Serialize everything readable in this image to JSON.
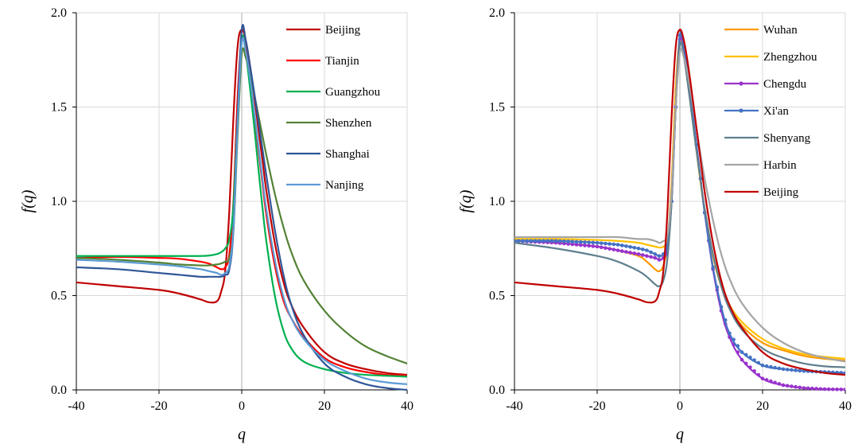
{
  "chart_data": [
    {
      "type": "line",
      "title": "",
      "xlabel": "q",
      "ylabel": "f(q)",
      "xlim": [
        -40,
        40
      ],
      "ylim": [
        0,
        2.0
      ],
      "xticks": [
        "-40",
        "-20",
        "0",
        "20",
        "40"
      ],
      "yticks": [
        "0.0",
        "0.5",
        "1.0",
        "1.5",
        "2.0"
      ],
      "grid": true,
      "legend_position": "top-right",
      "series": [
        {
          "name": "Beijing",
          "color": "#c00000",
          "markers": false,
          "x": [
            -40,
            -30,
            -20,
            -15,
            -10,
            -8,
            -6,
            -5,
            -4,
            -3,
            -2,
            -1,
            0,
            1,
            2,
            3,
            4,
            5,
            6,
            8,
            10,
            12,
            15,
            20,
            25,
            30,
            35,
            40
          ],
          "y": [
            0.57,
            0.55,
            0.53,
            0.51,
            0.48,
            0.465,
            0.47,
            0.52,
            0.63,
            0.95,
            1.45,
            1.82,
            1.91,
            1.85,
            1.72,
            1.56,
            1.39,
            1.22,
            1.05,
            0.78,
            0.58,
            0.45,
            0.33,
            0.2,
            0.14,
            0.11,
            0.09,
            0.08
          ]
        },
        {
          "name": "Tianjin",
          "color": "#ff0000",
          "markers": false,
          "x": [
            -40,
            -30,
            -20,
            -15,
            -10,
            -8,
            -6,
            -5,
            -4,
            -3,
            -2,
            -1,
            0,
            1,
            2,
            3,
            4,
            5,
            6,
            8,
            10,
            12,
            15,
            20,
            25,
            30,
            35,
            40
          ],
          "y": [
            0.7,
            0.705,
            0.7,
            0.695,
            0.68,
            0.67,
            0.65,
            0.64,
            0.65,
            0.72,
            1.0,
            1.55,
            1.86,
            1.8,
            1.65,
            1.47,
            1.28,
            1.1,
            0.92,
            0.66,
            0.48,
            0.38,
            0.28,
            0.17,
            0.12,
            0.095,
            0.08,
            0.075
          ]
        },
        {
          "name": "Guangzhou",
          "color": "#00b050",
          "markers": false,
          "x": [
            -40,
            -30,
            -20,
            -15,
            -10,
            -8,
            -6,
            -5,
            -4,
            -3,
            -2,
            -1,
            0,
            1,
            2,
            3,
            4,
            5,
            6,
            8,
            10,
            12,
            15,
            20,
            25,
            30,
            35,
            40
          ],
          "y": [
            0.71,
            0.71,
            0.71,
            0.71,
            0.71,
            0.712,
            0.72,
            0.73,
            0.75,
            0.8,
            0.98,
            1.45,
            1.86,
            1.78,
            1.6,
            1.4,
            1.18,
            0.97,
            0.78,
            0.5,
            0.32,
            0.22,
            0.15,
            0.11,
            0.09,
            0.08,
            0.075,
            0.07
          ]
        },
        {
          "name": "Shenzhen",
          "color": "#548235",
          "markers": false,
          "x": [
            -40,
            -30,
            -20,
            -15,
            -10,
            -8,
            -6,
            -5,
            -4,
            -3,
            -2,
            -1,
            0,
            1,
            2,
            3,
            4,
            5,
            6,
            8,
            10,
            12,
            15,
            20,
            25,
            30,
            35,
            40
          ],
          "y": [
            0.7,
            0.69,
            0.675,
            0.665,
            0.66,
            0.66,
            0.665,
            0.67,
            0.68,
            0.7,
            0.85,
            1.35,
            1.78,
            1.76,
            1.67,
            1.57,
            1.46,
            1.35,
            1.24,
            1.04,
            0.87,
            0.73,
            0.58,
            0.42,
            0.31,
            0.23,
            0.18,
            0.14
          ]
        },
        {
          "name": "Shanghai",
          "color": "#2f5597",
          "markers": false,
          "x": [
            -40,
            -30,
            -20,
            -15,
            -10,
            -8,
            -6,
            -5,
            -4,
            -3,
            -2,
            -1,
            0,
            1,
            2,
            3,
            4,
            5,
            6,
            8,
            10,
            12,
            15,
            20,
            25,
            30,
            35,
            40
          ],
          "y": [
            0.65,
            0.64,
            0.62,
            0.61,
            0.6,
            0.6,
            0.6,
            0.6,
            0.61,
            0.64,
            0.85,
            1.45,
            1.91,
            1.85,
            1.72,
            1.58,
            1.43,
            1.28,
            1.13,
            0.85,
            0.62,
            0.45,
            0.29,
            0.14,
            0.07,
            0.03,
            0.01,
            0.0
          ]
        },
        {
          "name": "Nanjing",
          "color": "#5b9bd5",
          "markers": false,
          "x": [
            -40,
            -30,
            -20,
            -15,
            -10,
            -8,
            -6,
            -5,
            -4,
            -3,
            -2,
            -1,
            0,
            1,
            2,
            3,
            4,
            5,
            6,
            8,
            10,
            12,
            15,
            20,
            25,
            30,
            35,
            40
          ],
          "y": [
            0.69,
            0.68,
            0.665,
            0.655,
            0.64,
            0.63,
            0.62,
            0.61,
            0.62,
            0.66,
            0.86,
            1.4,
            1.84,
            1.79,
            1.65,
            1.48,
            1.3,
            1.12,
            0.95,
            0.69,
            0.5,
            0.38,
            0.27,
            0.16,
            0.1,
            0.06,
            0.04,
            0.03
          ]
        }
      ]
    },
    {
      "type": "line",
      "title": "",
      "xlabel": "q",
      "ylabel": "f(q)",
      "xlim": [
        -40,
        40
      ],
      "ylim": [
        0,
        2.0
      ],
      "xticks": [
        "-40",
        "-20",
        "0",
        "20",
        "40"
      ],
      "yticks": [
        "0.0",
        "0.5",
        "1.0",
        "1.5",
        "2.0"
      ],
      "grid": true,
      "legend_position": "top-right",
      "series": [
        {
          "name": "Wuhan",
          "color": "#ff9900",
          "markers": false,
          "x": [
            -40,
            -30,
            -20,
            -15,
            -10,
            -8,
            -6,
            -5,
            -4,
            -3,
            -2,
            -1,
            0,
            1,
            2,
            3,
            4,
            5,
            6,
            8,
            10,
            12,
            15,
            20,
            25,
            30,
            35,
            40
          ],
          "y": [
            0.79,
            0.78,
            0.76,
            0.74,
            0.71,
            0.68,
            0.64,
            0.63,
            0.66,
            0.78,
            1.1,
            1.6,
            1.87,
            1.8,
            1.64,
            1.46,
            1.28,
            1.11,
            0.95,
            0.71,
            0.55,
            0.44,
            0.34,
            0.25,
            0.21,
            0.18,
            0.165,
            0.155
          ]
        },
        {
          "name": "Zhengzhou",
          "color": "#ffc000",
          "markers": false,
          "x": [
            -40,
            -30,
            -20,
            -15,
            -10,
            -8,
            -6,
            -5,
            -4,
            -3,
            -2,
            -1,
            0,
            1,
            2,
            3,
            4,
            5,
            6,
            8,
            10,
            12,
            15,
            20,
            25,
            30,
            35,
            40
          ],
          "y": [
            0.8,
            0.8,
            0.795,
            0.79,
            0.78,
            0.77,
            0.76,
            0.755,
            0.76,
            0.8,
            1.05,
            1.55,
            1.85,
            1.78,
            1.62,
            1.45,
            1.27,
            1.1,
            0.95,
            0.71,
            0.55,
            0.45,
            0.36,
            0.27,
            0.22,
            0.19,
            0.175,
            0.165
          ]
        },
        {
          "name": "Chengdu",
          "color": "#9933cc",
          "markers": true,
          "x": [
            -40,
            -30,
            -20,
            -15,
            -10,
            -8,
            -6,
            -5,
            -4,
            -3,
            -2,
            -1,
            0,
            1,
            2,
            3,
            4,
            5,
            6,
            8,
            10,
            12,
            15,
            20,
            25,
            30,
            35,
            40
          ],
          "y": [
            0.79,
            0.78,
            0.76,
            0.74,
            0.72,
            0.71,
            0.7,
            0.69,
            0.7,
            0.75,
            1.0,
            1.5,
            1.86,
            1.8,
            1.65,
            1.48,
            1.3,
            1.12,
            0.94,
            0.64,
            0.42,
            0.28,
            0.16,
            0.06,
            0.025,
            0.01,
            0.004,
            0.002
          ]
        },
        {
          "name": "Xi'an",
          "color": "#4472c4",
          "markers": true,
          "x": [
            -40,
            -30,
            -20,
            -15,
            -10,
            -8,
            -6,
            -5,
            -4,
            -3,
            -2,
            -1,
            0,
            1,
            2,
            3,
            4,
            5,
            6,
            8,
            10,
            12,
            15,
            20,
            25,
            30,
            35,
            40
          ],
          "y": [
            0.79,
            0.79,
            0.78,
            0.77,
            0.75,
            0.74,
            0.72,
            0.71,
            0.72,
            0.77,
            1.0,
            1.5,
            1.88,
            1.82,
            1.66,
            1.48,
            1.3,
            1.12,
            0.94,
            0.65,
            0.44,
            0.3,
            0.2,
            0.13,
            0.11,
            0.1,
            0.095,
            0.09
          ]
        },
        {
          "name": "Shenyang",
          "color": "#5f7f8e",
          "markers": false,
          "x": [
            -40,
            -30,
            -20,
            -15,
            -10,
            -8,
            -6,
            -5,
            -4,
            -3,
            -2,
            -1,
            0,
            1,
            2,
            3,
            4,
            5,
            6,
            8,
            10,
            12,
            15,
            20,
            25,
            30,
            35,
            40
          ],
          "y": [
            0.78,
            0.75,
            0.71,
            0.68,
            0.63,
            0.6,
            0.56,
            0.55,
            0.58,
            0.7,
            1.0,
            1.5,
            1.83,
            1.76,
            1.61,
            1.44,
            1.27,
            1.11,
            0.96,
            0.72,
            0.55,
            0.43,
            0.32,
            0.22,
            0.17,
            0.14,
            0.125,
            0.12
          ]
        },
        {
          "name": "Harbin",
          "color": "#a5a5a5",
          "markers": false,
          "x": [
            -40,
            -30,
            -20,
            -15,
            -10,
            -8,
            -6,
            -5,
            -4,
            -3,
            -2,
            -1,
            0,
            1,
            2,
            3,
            4,
            5,
            6,
            8,
            10,
            12,
            15,
            20,
            25,
            30,
            35,
            40
          ],
          "y": [
            0.81,
            0.81,
            0.81,
            0.81,
            0.8,
            0.8,
            0.79,
            0.78,
            0.79,
            0.82,
            1.05,
            1.5,
            1.79,
            1.76,
            1.66,
            1.53,
            1.39,
            1.25,
            1.12,
            0.9,
            0.72,
            0.59,
            0.46,
            0.33,
            0.25,
            0.2,
            0.17,
            0.15
          ]
        },
        {
          "name": "Beijing",
          "color": "#c00000",
          "markers": false,
          "x": [
            -40,
            -30,
            -20,
            -15,
            -10,
            -8,
            -6,
            -5,
            -4,
            -3,
            -2,
            -1,
            0,
            1,
            2,
            3,
            4,
            5,
            6,
            8,
            10,
            12,
            15,
            20,
            25,
            30,
            35,
            40
          ],
          "y": [
            0.57,
            0.55,
            0.53,
            0.51,
            0.48,
            0.465,
            0.47,
            0.52,
            0.63,
            0.95,
            1.45,
            1.82,
            1.91,
            1.85,
            1.72,
            1.56,
            1.39,
            1.22,
            1.05,
            0.78,
            0.58,
            0.45,
            0.33,
            0.2,
            0.14,
            0.11,
            0.09,
            0.08
          ]
        }
      ]
    }
  ]
}
